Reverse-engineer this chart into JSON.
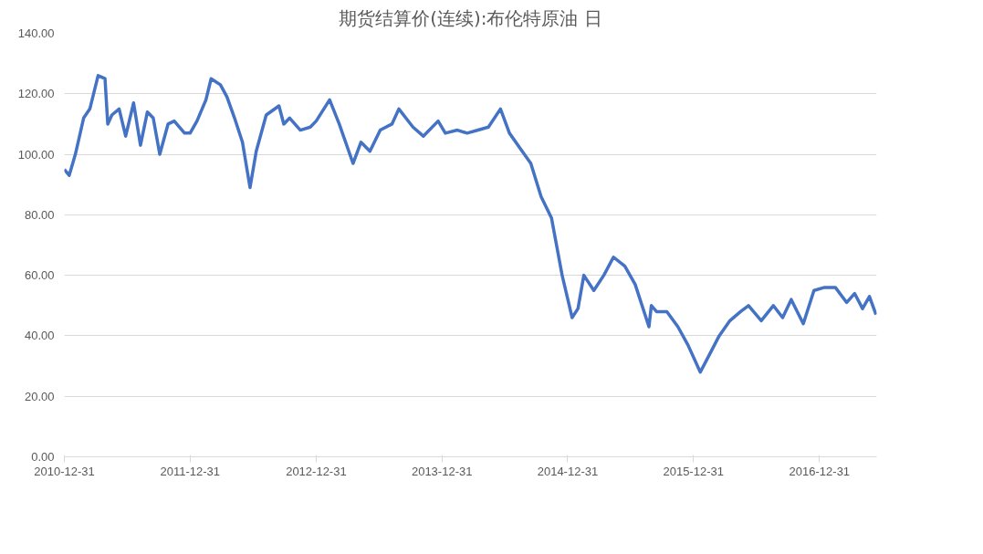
{
  "chart_data": {
    "type": "line",
    "title": "期货结算价(连续):布伦特原油 日",
    "x": [
      "2010-12-31",
      "2011-01-14",
      "2011-02-01",
      "2011-02-25",
      "2011-03-15",
      "2011-04-08",
      "2011-04-28",
      "2011-05-06",
      "2011-05-18",
      "2011-06-08",
      "2011-06-27",
      "2011-07-20",
      "2011-08-09",
      "2011-08-29",
      "2011-09-15",
      "2011-10-04",
      "2011-10-28",
      "2011-11-15",
      "2011-12-15",
      "2011-12-31",
      "2012-01-20",
      "2012-02-15",
      "2012-03-01",
      "2012-03-28",
      "2012-04-16",
      "2012-05-08",
      "2012-05-31",
      "2012-06-22",
      "2012-07-10",
      "2012-08-08",
      "2012-09-14",
      "2012-09-28",
      "2012-10-15",
      "2012-11-15",
      "2012-12-14",
      "2012-12-31",
      "2013-02-08",
      "2013-03-08",
      "2013-04-17",
      "2013-05-10",
      "2013-06-05",
      "2013-07-05",
      "2013-08-08",
      "2013-08-28",
      "2013-10-08",
      "2013-11-07",
      "2013-12-20",
      "2014-01-10",
      "2014-02-14",
      "2014-03-14",
      "2014-04-15",
      "2014-05-15",
      "2014-06-19",
      "2014-07-15",
      "2014-08-15",
      "2014-09-15",
      "2014-10-15",
      "2014-11-14",
      "2014-12-15",
      "2015-01-13",
      "2015-01-30",
      "2015-02-16",
      "2015-03-17",
      "2015-04-15",
      "2015-05-13",
      "2015-06-15",
      "2015-07-15",
      "2015-08-24",
      "2015-08-31",
      "2015-09-15",
      "2015-10-15",
      "2015-11-16",
      "2015-12-15",
      "2016-01-20",
      "2016-02-12",
      "2016-03-15",
      "2016-04-15",
      "2016-05-16",
      "2016-06-08",
      "2016-07-15",
      "2016-08-19",
      "2016-09-15",
      "2016-10-10",
      "2016-11-14",
      "2016-12-15",
      "2017-01-15",
      "2017-02-15",
      "2017-03-20",
      "2017-04-12",
      "2017-05-05",
      "2017-05-25",
      "2017-06-13"
    ],
    "series": [
      {
        "color": "#4472c4",
        "values": [
          95,
          93,
          100,
          112,
          115,
          126,
          125,
          110,
          113,
          115,
          106,
          117,
          103,
          114,
          112,
          100,
          110,
          111,
          107,
          107,
          111,
          118,
          125,
          123,
          119,
          112,
          104,
          89,
          101,
          113,
          116,
          110,
          112,
          108,
          109,
          111,
          118,
          110,
          97,
          104,
          101,
          108,
          110,
          115,
          109,
          106,
          111,
          107,
          108,
          107,
          108,
          109,
          115,
          107,
          102,
          97,
          86,
          79,
          60,
          46,
          49,
          60,
          55,
          60,
          66,
          63,
          57,
          43,
          50,
          48,
          48,
          43,
          37,
          28,
          33,
          40,
          45,
          48,
          50,
          45,
          50,
          46,
          52,
          44,
          55,
          56,
          56,
          51,
          54,
          49,
          53,
          47
        ]
      }
    ],
    "xlim": [
      "2010-12-31",
      "2017-06-15"
    ],
    "xticks": [
      "2010-12-31",
      "2011-12-31",
      "2012-12-31",
      "2013-12-31",
      "2014-12-31",
      "2015-12-31",
      "2016-12-31"
    ],
    "ylim": [
      0,
      140
    ],
    "yticks": [
      {
        "value": 0,
        "label": "0.00"
      },
      {
        "value": 20,
        "label": "20.00"
      },
      {
        "value": 40,
        "label": "40.00"
      },
      {
        "value": 60,
        "label": "60.00"
      },
      {
        "value": 80,
        "label": "80.00"
      },
      {
        "value": 100,
        "label": "100.00"
      },
      {
        "value": 120,
        "label": "120.00"
      },
      {
        "value": 140,
        "label": "140.00"
      }
    ],
    "grid": "y",
    "line_style": "solid"
  }
}
